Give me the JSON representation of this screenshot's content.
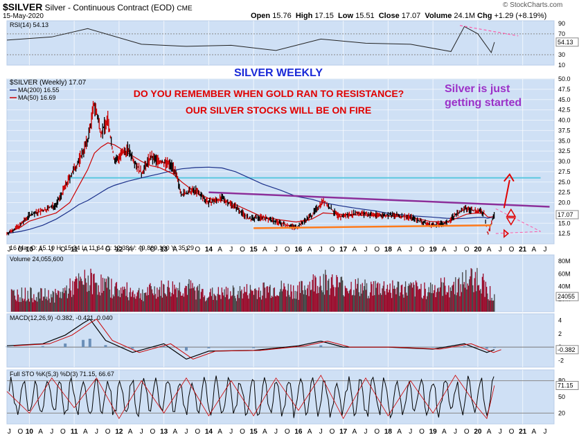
{
  "header": {
    "symbol": "$SILVER",
    "name": "Silver - Continuous Contract (EOD)",
    "exchange": "CME",
    "date": "15-May-2020",
    "open_label": "Open",
    "open": "15.76",
    "high_label": "High",
    "high": "17.15",
    "low_label": "Low",
    "low": "15.51",
    "close_label": "Close",
    "close": "17.07",
    "volume_label": "Volume",
    "volume": "24.1M",
    "chg_label": "Chg",
    "chg": "+1.29 (+8.19%)",
    "brand": "© StockCharts.com"
  },
  "colors": {
    "panel_bg": "#cfe0f5",
    "frame": "#b8cde8",
    "price_up": "#000000",
    "price_down": "#cc0000",
    "ma200": "#1a2f8a",
    "ma50": "#cc0000",
    "resistance": "#8c2f9a",
    "support": "#ff7a1a",
    "target": "#5cc8e0",
    "annotation_red": "#e00000",
    "annotation_purple": "#9b30c8",
    "annotation_blue": "#1a2ad8",
    "arrow": "#e00000",
    "dashed": "#ff5aa8",
    "volume": "#9a0a2a"
  },
  "annotations": {
    "title": "SILVER WEEKLY",
    "line1": "DO YOU REMEMBER WHEN GOLD RAN TO RESISTANCE?",
    "line2": "OUR SILVER STOCKS WILL BE ON FIRE",
    "right1": "Silver is just",
    "right2": "getting started"
  },
  "chart_data": [
    {
      "type": "line",
      "panel": "rsi",
      "title": "RSI(14) 54.13",
      "y_ticks": [
        90,
        70,
        50,
        30,
        10
      ],
      "current_label": "54.13",
      "ylim": [
        10,
        95
      ],
      "x": [
        2009.5,
        2010.5,
        2011.3,
        2012.5,
        2013.5,
        2014.5,
        2015.5,
        2016.5,
        2017.5,
        2018.5,
        2019.4,
        2019.7,
        2020.0,
        2020.3,
        2020.37
      ],
      "series": [
        {
          "values": [
            58,
            64,
            80,
            50,
            46,
            48,
            38,
            60,
            52,
            50,
            36,
            84,
            70,
            34,
            54
          ]
        }
      ]
    },
    {
      "type": "line",
      "panel": "price",
      "legend": [
        "$SILVER (Weekly) 17.07",
        "MA(200) 16.55",
        "MA(50) 16.69"
      ],
      "current_label": "17.07",
      "y_ticks": [
        50.0,
        47.5,
        45.0,
        42.5,
        40.0,
        37.5,
        35.0,
        32.5,
        30.0,
        27.5,
        25.0,
        22.5,
        20.0,
        17.5,
        15.0,
        12.5
      ],
      "ylim": [
        10,
        50
      ],
      "x": [
        2009.5,
        2009.8,
        2010.0,
        2010.3,
        2010.6,
        2010.9,
        2011.1,
        2011.3,
        2011.45,
        2011.6,
        2011.75,
        2011.9,
        2012.2,
        2012.5,
        2012.7,
        2012.9,
        2013.2,
        2013.4,
        2013.7,
        2014.0,
        2014.3,
        2014.6,
        2014.9,
        2015.2,
        2015.6,
        2015.95,
        2016.3,
        2016.55,
        2016.9,
        2017.3,
        2017.7,
        2018.0,
        2018.5,
        2018.95,
        2019.3,
        2019.55,
        2019.75,
        2020.0,
        2020.15,
        2020.22,
        2020.3,
        2020.37
      ],
      "series": [
        {
          "name": "$SILVER (Weekly) 17.07",
          "values": [
            12.5,
            14.5,
            17,
            18,
            19.5,
            26,
            30,
            35,
            44,
            37,
            40,
            30,
            33,
            27,
            31,
            30,
            29,
            22,
            23,
            20,
            21,
            19,
            16,
            16.5,
            15,
            14,
            17,
            20.5,
            16.5,
            17.5,
            17,
            17,
            16.5,
            14.5,
            15,
            17.5,
            18.5,
            18,
            17.5,
            12,
            15,
            17.07
          ]
        },
        {
          "name": "MA(200) 16.55",
          "values": [
            12.5,
            13,
            13.5,
            14.5,
            16,
            18,
            19.5,
            20.5,
            21.5,
            22.5,
            23.5,
            24.2,
            25.2,
            26,
            26.5,
            27,
            27.8,
            28.2,
            28.5,
            28.6,
            28.4,
            27.5,
            26,
            24.5,
            23,
            21.5,
            20.8,
            20,
            19.3,
            18.6,
            18,
            17.4,
            16.8,
            16.5,
            16.2,
            16.1,
            16.2,
            16.4,
            16.4,
            16.2,
            16.4,
            16.55
          ]
        },
        {
          "name": "MA(50) 16.69",
          "values": [
            12.5,
            14,
            15.5,
            16.5,
            17.5,
            20,
            24,
            28,
            32,
            33.5,
            34.5,
            34,
            32,
            30,
            29,
            28.5,
            27,
            25,
            22.5,
            21,
            20.5,
            19.5,
            18,
            16.5,
            15.8,
            15.3,
            16,
            17.5,
            17.2,
            17,
            16.8,
            16.7,
            16.5,
            15.4,
            15.3,
            16.3,
            17.2,
            17.5,
            17.3,
            16.5,
            16.5,
            16.69
          ]
        }
      ],
      "trendlines": [
        {
          "from": [
            2014.0,
            22.5
          ],
          "to": [
            2021.6,
            19.0
          ]
        },
        {
          "from": [
            2015.0,
            13.8
          ],
          "to": [
            2020.3,
            14.5
          ]
        },
        {
          "from": [
            2010.9,
            26.0
          ],
          "to": [
            2021.4,
            26.0
          ]
        }
      ]
    },
    {
      "type": "bar",
      "panel": "volume",
      "title": "Volume 24,055,600",
      "current_label": "24055",
      "y_ticks": [
        "80M",
        "60M",
        "40M",
        "20M"
      ],
      "ylim": [
        0,
        90
      ],
      "x": [
        2010.0,
        2010.6,
        2011.0,
        2011.3,
        2011.6,
        2012.0,
        2012.5,
        2013.0,
        2013.5,
        2014.0,
        2014.5,
        2015.0,
        2015.5,
        2016.0,
        2016.5,
        2017.0,
        2017.5,
        2018.0,
        2018.5,
        2019.0,
        2019.5,
        2019.8,
        2020.0,
        2020.2,
        2020.37
      ],
      "values": [
        30,
        28,
        45,
        55,
        48,
        38,
        32,
        40,
        42,
        30,
        32,
        36,
        40,
        36,
        55,
        45,
        40,
        42,
        38,
        40,
        45,
        55,
        60,
        40,
        24
      ]
    },
    {
      "type": "line",
      "panel": "macd",
      "title": "MACD(12,26,9) -0.382, -0.421, 0.040",
      "current_label": "-0.382",
      "y_ticks": [
        4,
        2,
        0,
        -2
      ],
      "ylim": [
        -3,
        5
      ],
      "x": [
        2009.5,
        2010.3,
        2010.8,
        2011.2,
        2011.35,
        2011.7,
        2012.3,
        2013.0,
        2013.5,
        2014.0,
        2015.0,
        2016.0,
        2016.5,
        2017.0,
        2018.0,
        2019.0,
        2019.7,
        2020.2,
        2020.37
      ],
      "series": [
        {
          "values": [
            0.2,
            0.5,
            1.8,
            3.6,
            4.2,
            1.0,
            -0.8,
            0.5,
            -1.8,
            -0.6,
            -0.5,
            0.2,
            0.9,
            0.0,
            0.0,
            -0.3,
            0.5,
            -0.8,
            -0.382
          ]
        }
      ]
    },
    {
      "type": "line",
      "panel": "stochastic",
      "title": "Full STO %K(5,3) %D(3) 71.15, 66.67",
      "current_label": "71.15",
      "y_ticks": [
        80,
        50,
        20
      ],
      "ylim": [
        0,
        100
      ],
      "x": [
        2009.5,
        2010.0,
        2010.5,
        2011.0,
        2011.5,
        2012.0,
        2012.5,
        2013.0,
        2013.5,
        2014.0,
        2014.5,
        2015.0,
        2015.5,
        2016.0,
        2016.5,
        2017.0,
        2017.5,
        2018.0,
        2018.5,
        2019.0,
        2019.5,
        2020.0,
        2020.2,
        2020.37
      ],
      "series": [
        {
          "values": [
            60,
            20,
            85,
            30,
            85,
            10,
            80,
            20,
            85,
            15,
            80,
            15,
            85,
            25,
            90,
            10,
            85,
            15,
            80,
            20,
            90,
            30,
            10,
            71.15
          ]
        }
      ]
    }
  ],
  "price_info": {
    "text": "16 Mar O: 15.10 H: 15.24 L: 11.64 C: 12.38 V: 49,869,100 Y: 35.29"
  },
  "x_axis": {
    "labels": [
      {
        "x": 2009.55,
        "t": "J"
      },
      {
        "x": 2009.8,
        "t": "O"
      },
      {
        "x": 2010.0,
        "t": "10"
      },
      {
        "x": 2010.25,
        "t": "A"
      },
      {
        "x": 2010.5,
        "t": "J"
      },
      {
        "x": 2010.75,
        "t": "O"
      },
      {
        "x": 2011.0,
        "t": "11"
      },
      {
        "x": 2011.25,
        "t": "A"
      },
      {
        "x": 2011.5,
        "t": "J"
      },
      {
        "x": 2011.75,
        "t": "O"
      },
      {
        "x": 2012.0,
        "t": "12"
      },
      {
        "x": 2012.25,
        "t": "A"
      },
      {
        "x": 2012.5,
        "t": "J"
      },
      {
        "x": 2012.75,
        "t": "O"
      },
      {
        "x": 2013.0,
        "t": "13"
      },
      {
        "x": 2013.25,
        "t": "A"
      },
      {
        "x": 2013.5,
        "t": "J"
      },
      {
        "x": 2013.75,
        "t": "O"
      },
      {
        "x": 2014.0,
        "t": "14"
      },
      {
        "x": 2014.25,
        "t": "A"
      },
      {
        "x": 2014.5,
        "t": "J"
      },
      {
        "x": 2014.75,
        "t": "O"
      },
      {
        "x": 2015.0,
        "t": "15"
      },
      {
        "x": 2015.25,
        "t": "A"
      },
      {
        "x": 2015.5,
        "t": "J"
      },
      {
        "x": 2015.75,
        "t": "O"
      },
      {
        "x": 2016.0,
        "t": "16"
      },
      {
        "x": 2016.25,
        "t": "A"
      },
      {
        "x": 2016.5,
        "t": "J"
      },
      {
        "x": 2016.75,
        "t": "O"
      },
      {
        "x": 2017.0,
        "t": "17"
      },
      {
        "x": 2017.25,
        "t": "A"
      },
      {
        "x": 2017.5,
        "t": "J"
      },
      {
        "x": 2017.75,
        "t": "O"
      },
      {
        "x": 2018.0,
        "t": "18"
      },
      {
        "x": 2018.25,
        "t": "A"
      },
      {
        "x": 2018.5,
        "t": "J"
      },
      {
        "x": 2018.75,
        "t": "O"
      },
      {
        "x": 2019.0,
        "t": "19"
      },
      {
        "x": 2019.25,
        "t": "A"
      },
      {
        "x": 2019.5,
        "t": "J"
      },
      {
        "x": 2019.75,
        "t": "O"
      },
      {
        "x": 2020.0,
        "t": "20"
      },
      {
        "x": 2020.25,
        "t": "A"
      },
      {
        "x": 2020.5,
        "t": "J"
      },
      {
        "x": 2020.75,
        "t": "O"
      },
      {
        "x": 2021.0,
        "t": "21"
      },
      {
        "x": 2021.25,
        "t": "A"
      },
      {
        "x": 2021.5,
        "t": "J"
      }
    ]
  }
}
